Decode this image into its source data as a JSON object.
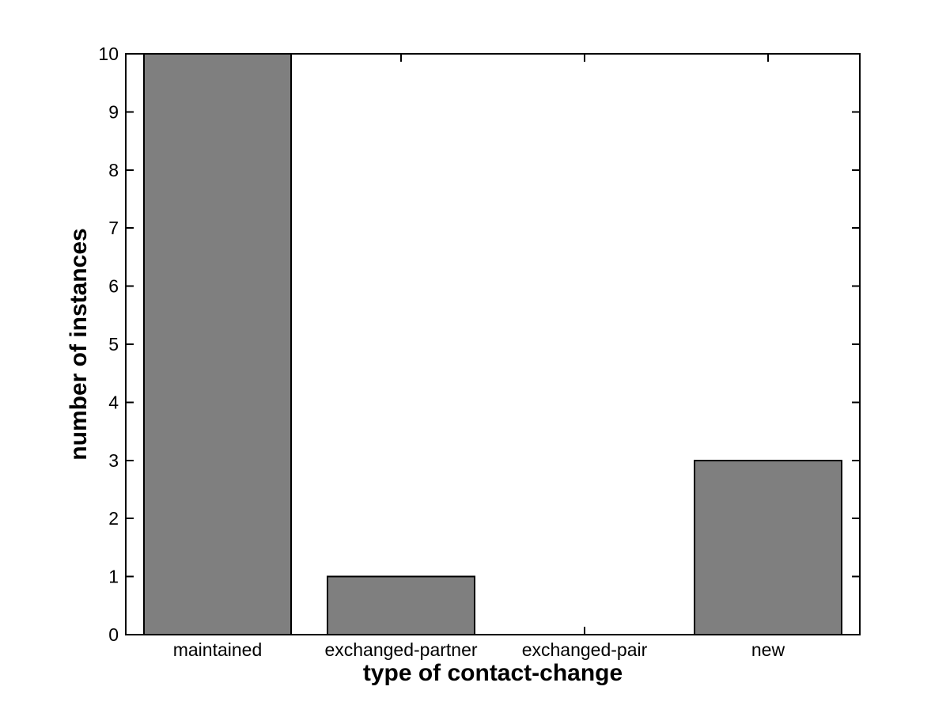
{
  "chart_data": {
    "type": "bar",
    "categories": [
      "maintained",
      "exchanged-partner",
      "exchanged-pair",
      "new"
    ],
    "values": [
      10,
      1,
      0,
      3
    ],
    "title": "",
    "xlabel": "type of contact-change",
    "ylabel": "number of instances",
    "ylim": [
      0,
      10
    ],
    "yticks": [
      0,
      1,
      2,
      3,
      4,
      5,
      6,
      7,
      8,
      9,
      10
    ],
    "bar_width_fraction": 0.8,
    "grid": false,
    "colors": {
      "bar_fill": "#7f7f7f",
      "bar_edge": "#000000",
      "axis": "#000000",
      "background": "#ffffff",
      "text": "#000000"
    }
  }
}
